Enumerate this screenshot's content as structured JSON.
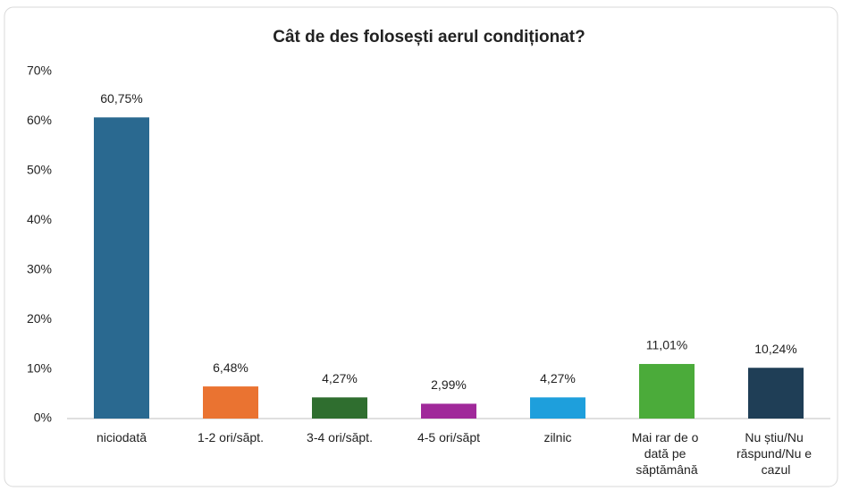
{
  "chart_data": {
    "type": "bar",
    "title": "Cât de des folosești aerul condiționat?",
    "categories": [
      "niciodată",
      "1-2 ori/săpt.",
      "3-4 ori/săpt.",
      "4-5 ori/săpt",
      "zilnic",
      "Mai rar de o dată pe săptămână",
      "Nu știu/Nu răspund/Nu e cazul"
    ],
    "values": [
      60.75,
      6.48,
      4.27,
      2.99,
      4.27,
      11.01,
      10.24
    ],
    "value_labels": [
      "60,75%",
      "6,48%",
      "4,27%",
      "2,99%",
      "4,27%",
      "11,01%",
      "10,24%"
    ],
    "colors": [
      "#2a6990",
      "#ea7331",
      "#2f6e2f",
      "#a0299a",
      "#1e9fdc",
      "#4bab3a",
      "#1f3e56"
    ],
    "ylim": [
      0,
      70
    ],
    "yticks": [
      {
        "value": 0,
        "label": "0%"
      },
      {
        "value": 10,
        "label": "10%"
      },
      {
        "value": 20,
        "label": "20%"
      },
      {
        "value": 30,
        "label": "30%"
      },
      {
        "value": 40,
        "label": "40%"
      },
      {
        "value": 50,
        "label": "50%"
      },
      {
        "value": 60,
        "label": "60%"
      },
      {
        "value": 70,
        "label": "70%"
      }
    ],
    "grid": false
  }
}
